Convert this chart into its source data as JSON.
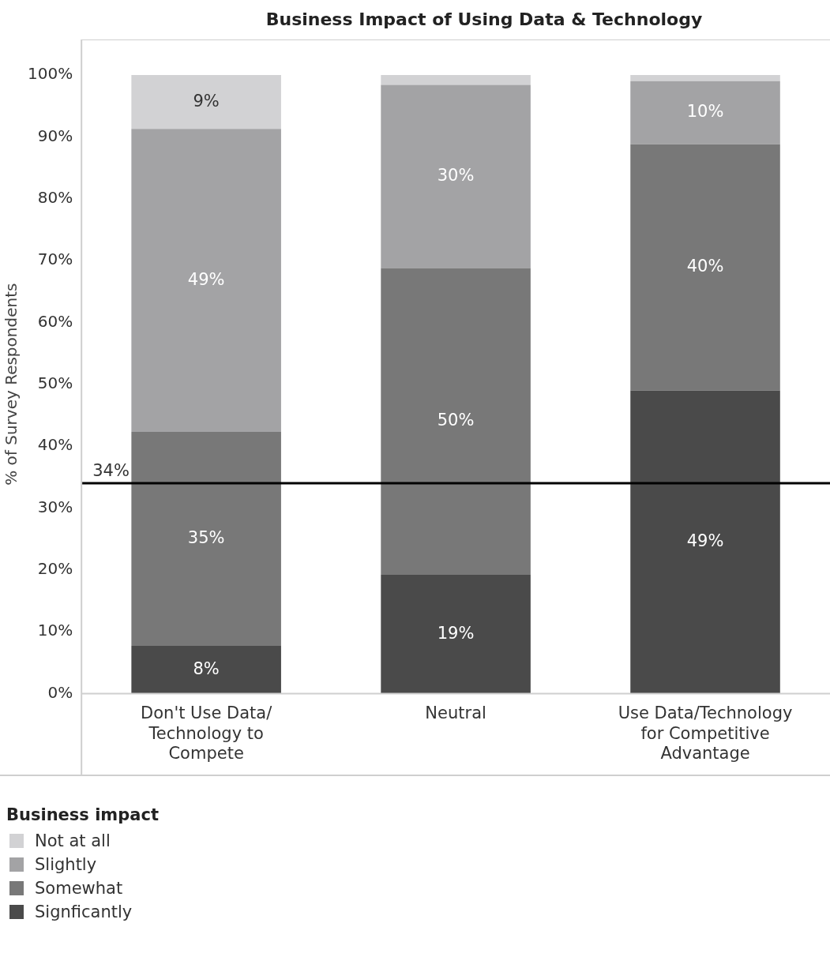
{
  "chart_data": {
    "type": "bar",
    "title": "Business Impact of Using Data & Technology",
    "ylabel": "% of Survey Respondents",
    "legend_title": "Business impact",
    "categories": [
      "Don't Use Data/ Technology to Compete",
      "Neutral",
      "Use Data/Technology for Competitive Advantage"
    ],
    "stacked": true,
    "series": [
      {
        "name": "Signficantly",
        "color": "#4a4a4a",
        "values": [
          7.7,
          19.2,
          49
        ],
        "value_labels": [
          "8%",
          "19%",
          "49%"
        ]
      },
      {
        "name": "Somewhat",
        "color": "#787878",
        "values": [
          34.6,
          49.6,
          39.8
        ],
        "value_labels": [
          "35%",
          "50%",
          "40%"
        ]
      },
      {
        "name": "Slightly",
        "color": "#a3a3a5",
        "values": [
          49,
          29.6,
          10.2
        ],
        "value_labels": [
          "49%",
          "30%",
          "10%"
        ]
      },
      {
        "name": "Not at all",
        "color": "#d2d2d4",
        "values": [
          8.7,
          1.6,
          1
        ],
        "value_labels": [
          "9%",
          null,
          null
        ]
      }
    ],
    "ylim": [
      0,
      100
    ],
    "yticks": [
      {
        "value": 0,
        "label": "0%"
      },
      {
        "value": 10,
        "label": "10%"
      },
      {
        "value": 20,
        "label": "20%"
      },
      {
        "value": 30,
        "label": "30%"
      },
      {
        "value": 40,
        "label": "40%"
      },
      {
        "value": 50,
        "label": "50%"
      },
      {
        "value": 60,
        "label": "60%"
      },
      {
        "value": 70,
        "label": "70%"
      },
      {
        "value": 80,
        "label": "80%"
      },
      {
        "value": 90,
        "label": "90%"
      },
      {
        "value": 100,
        "label": "100%"
      }
    ],
    "ref_lines": [
      {
        "axis": "y",
        "value": 34,
        "label": "34%",
        "color": "#000000"
      }
    ],
    "grid": false,
    "legend": "bottom left"
  }
}
